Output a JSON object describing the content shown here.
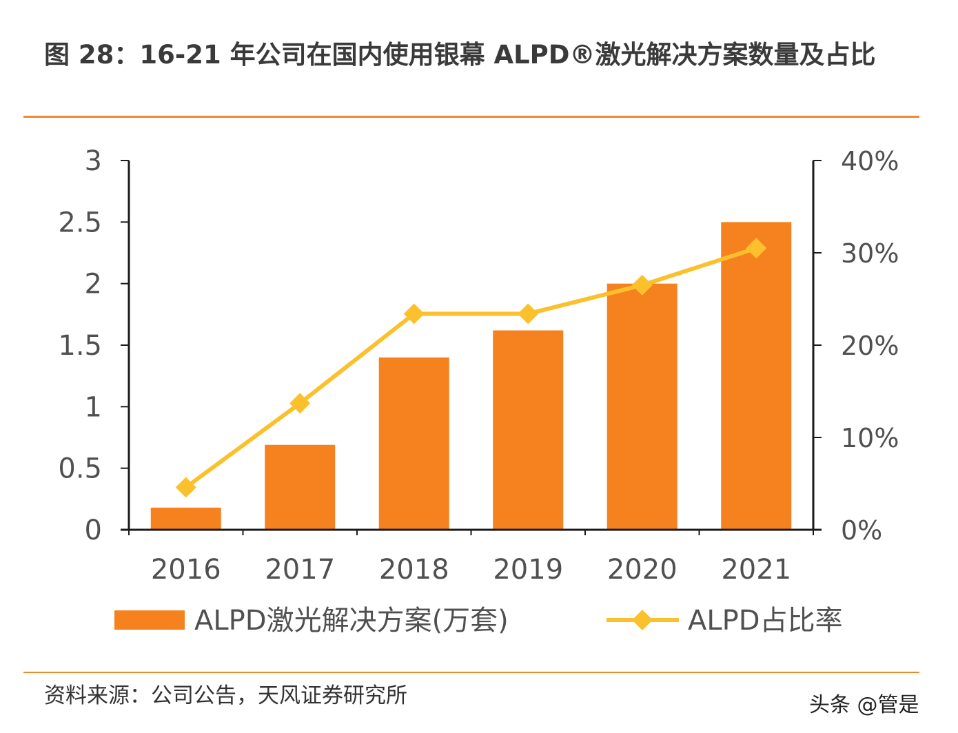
{
  "title": "图 28：16-21 年公司在国内使用银幕 ALPD®激光解决方案数量及占比",
  "source": "资料来源：公司公告，天风证券研究所",
  "watermark": "头条 @管是",
  "colors": {
    "bar": "#F5821F",
    "line": "#FBC12D",
    "rule": "#ED8A2E",
    "axis": "#1a1a1a",
    "text": "#505050"
  },
  "chart_data": {
    "type": "bar+line",
    "categories": [
      "2016",
      "2017",
      "2018",
      "2019",
      "2020",
      "2021"
    ],
    "series": [
      {
        "name": "ALPD激光解决方案(万套)",
        "type": "bar",
        "axis": "left",
        "values": [
          0.18,
          0.69,
          1.4,
          1.62,
          2.0,
          2.5
        ]
      },
      {
        "name": "ALPD占比率",
        "type": "line",
        "axis": "right",
        "marker": "diamond",
        "values": [
          4.6,
          13.7,
          23.4,
          23.4,
          26.5,
          30.5
        ]
      }
    ],
    "left_axis": {
      "ylim": [
        0,
        3
      ],
      "ticks": [
        "0",
        "0.5",
        "1",
        "1.5",
        "2",
        "2.5",
        "3"
      ]
    },
    "right_axis": {
      "ylim": [
        0,
        40
      ],
      "ticks": [
        "0%",
        "10%",
        "20%",
        "30%",
        "40%"
      ]
    },
    "grid": false,
    "legend": "bottom"
  }
}
